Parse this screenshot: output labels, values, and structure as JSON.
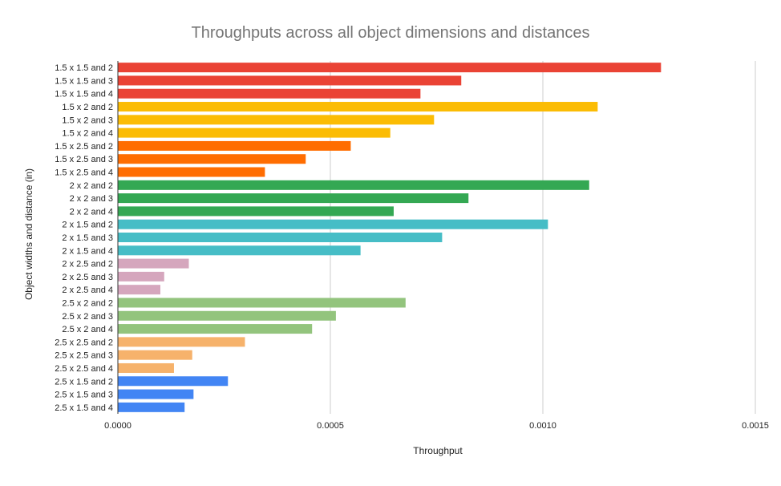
{
  "chart_data": {
    "type": "bar",
    "orientation": "horizontal",
    "title": "Throughputs across all object dimensions and distances",
    "xlabel": "Throughput",
    "ylabel": "Object widths and distance (in)",
    "xlim": [
      0,
      0.0015
    ],
    "xticks": [
      "0.0000",
      "0.0005",
      "0.0010",
      "0.0015"
    ],
    "grid": true,
    "categories": [
      "1.5 x 1.5 and 2",
      "1.5 x 1.5 and 3",
      "1.5 x 1.5 and 4",
      "1.5 x 2 and 2",
      "1.5 x 2 and 3",
      "1.5 x 2 and 4",
      "1.5 x 2.5 and 2",
      "1.5 x 2.5 and 3",
      "1.5 x 2.5 and 4",
      "2 x 2 and 2",
      "2 x 2 and 3",
      "2 x 2 and 4",
      "2 x 1.5 and 2",
      "2 x 1.5 and 3",
      "2 x 1.5 and 4",
      "2 x 2.5 and 2",
      "2 x 2.5 and 3",
      "2 x 2.5 and 4",
      "2.5 x 2 and 2",
      "2.5 x 2 and 3",
      "2.5 x 2 and 4",
      "2.5 x 2.5 and 2",
      "2.5 x 2.5 and 3",
      "2.5 x 2.5 and 4",
      "2.5 x 1.5 and 2",
      "2.5 x 1.5 and 3",
      "2.5 x 1.5 and 4"
    ],
    "values": [
      0.001278,
      0.000808,
      0.000712,
      0.001129,
      0.000744,
      0.000641,
      0.000548,
      0.000442,
      0.000346,
      0.001109,
      0.000825,
      0.000649,
      0.001012,
      0.000763,
      0.000571,
      0.000167,
      0.000109,
      0.0001,
      0.000677,
      0.000513,
      0.000457,
      0.000299,
      0.000175,
      0.000132,
      0.000259,
      0.000178,
      0.000157
    ],
    "colors": [
      "#ea4335",
      "#ea4335",
      "#ea4335",
      "#fbbc04",
      "#fbbc04",
      "#fbbc04",
      "#ff6d01",
      "#ff6d01",
      "#ff6d01",
      "#34a853",
      "#34a853",
      "#34a853",
      "#46bdc6",
      "#46bdc6",
      "#46bdc6",
      "#d5a6bd",
      "#d5a6bd",
      "#d5a6bd",
      "#93c47d",
      "#93c47d",
      "#93c47d",
      "#f6b26b",
      "#f6b26b",
      "#f6b26b",
      "#4285f4",
      "#4285f4",
      "#4285f4"
    ]
  }
}
